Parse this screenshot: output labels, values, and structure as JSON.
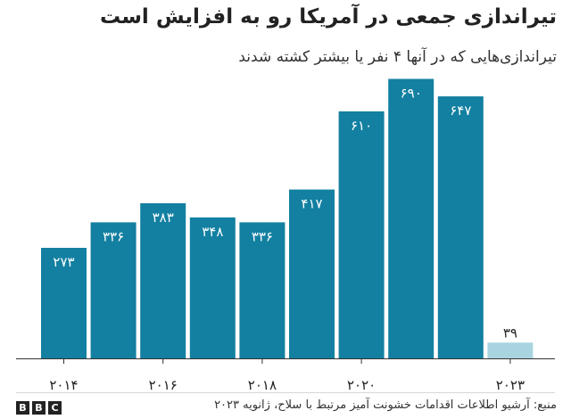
{
  "chart_data": {
    "type": "bar",
    "title": "تیراندازی جمعی در آمریکا رو به افزایش است",
    "subtitle": "تیراندازی‌هایی که در آنها ۴ نفر یا بیشتر کشته شدند",
    "categories": [
      "2014",
      "2015",
      "2016",
      "2017",
      "2018",
      "2019",
      "2020",
      "2021",
      "2022",
      "2023"
    ],
    "values": [
      273,
      336,
      383,
      348,
      336,
      417,
      610,
      690,
      647,
      39
    ],
    "value_labels": [
      "۲۷۳",
      "۳۳۶",
      "۳۸۳",
      "۳۴۸",
      "۳۳۶",
      "۴۱۷",
      "۶۱۰",
      "۶۹۰",
      "۶۴۷",
      "۳۹"
    ],
    "x_tick_labels": [
      {
        "category": "2014",
        "label": "۲۰۱۴"
      },
      {
        "category": "2016",
        "label": "۲۰۱۶"
      },
      {
        "category": "2018",
        "label": "۲۰۱۸"
      },
      {
        "category": "2020",
        "label": "۲۰۲۰"
      },
      {
        "category": "2023",
        "label": "۲۰۲۳"
      }
    ],
    "ylim": [
      0,
      700
    ],
    "grid": false,
    "colors": {
      "bar": "#1380a1",
      "partial_year_bar": "#a8d4e0",
      "label_inside": "#ffffff",
      "label_outside": "#222222"
    }
  },
  "footer": {
    "source": "منبع: آرشیو اطلاعات اقدامات خشونت آمیز مرتبط با سلاح، ژانویه ۲۰۲۳",
    "logo_letters": [
      "B",
      "B",
      "C"
    ]
  }
}
